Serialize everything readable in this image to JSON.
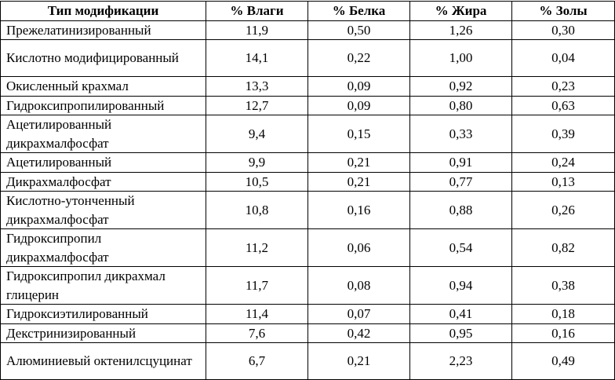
{
  "table": {
    "headers": [
      "Тип модификации",
      "% Влаги",
      "% Белка",
      "% Жира",
      "% Золы"
    ],
    "rows": [
      {
        "lines": 1,
        "name": "Прежелатинизированный",
        "values": [
          "11,9",
          "0,50",
          "1,26",
          "0,30"
        ]
      },
      {
        "lines": 2,
        "name": "Кислотно модифицированный",
        "values": [
          "14,1",
          "0,22",
          "1,00",
          "0,04"
        ]
      },
      {
        "lines": 1,
        "name": "Окисленный крахмал",
        "values": [
          "13,3",
          "0,09",
          "0,92",
          "0,23"
        ]
      },
      {
        "lines": 1,
        "name": "Гидроксипропилированный",
        "values": [
          "12,7",
          "0,09",
          "0,80",
          "0,63"
        ]
      },
      {
        "lines": 2,
        "name": "Ацетилированный дикрахмалфосфат",
        "values": [
          "9,4",
          "0,15",
          "0,33",
          "0,39"
        ]
      },
      {
        "lines": 1,
        "name": "Ацетилированный",
        "values": [
          "9,9",
          "0,21",
          "0,91",
          "0,24"
        ]
      },
      {
        "lines": 1,
        "name": "Дикрахмалфосфат",
        "values": [
          "10,5",
          "0,21",
          "0,77",
          "0,13"
        ]
      },
      {
        "lines": 2,
        "name": "Кислотно-утонченный дикрахмалфосфат",
        "values": [
          "10,8",
          "0,16",
          "0,88",
          "0,26"
        ]
      },
      {
        "lines": 2,
        "name": "Гидроксипропил дикрахмалфосфат",
        "values": [
          "11,2",
          "0,06",
          "0,54",
          "0,82"
        ]
      },
      {
        "lines": 2,
        "name": "Гидроксипропил дикрахмал глицерин",
        "values": [
          "11,7",
          "0,08",
          "0,94",
          "0,38"
        ]
      },
      {
        "lines": 1,
        "name": "Гидроксиэтилированный",
        "values": [
          "11,4",
          "0,07",
          "0,41",
          "0,18"
        ]
      },
      {
        "lines": 1,
        "name": "Декстринизированный",
        "values": [
          "7,6",
          "0,42",
          "0,95",
          "0,16"
        ]
      },
      {
        "lines": 2,
        "name": "Алюминиевый октенилсцуцинат",
        "values": [
          "6,7",
          "0,21",
          "2,23",
          "0,49"
        ]
      }
    ]
  }
}
